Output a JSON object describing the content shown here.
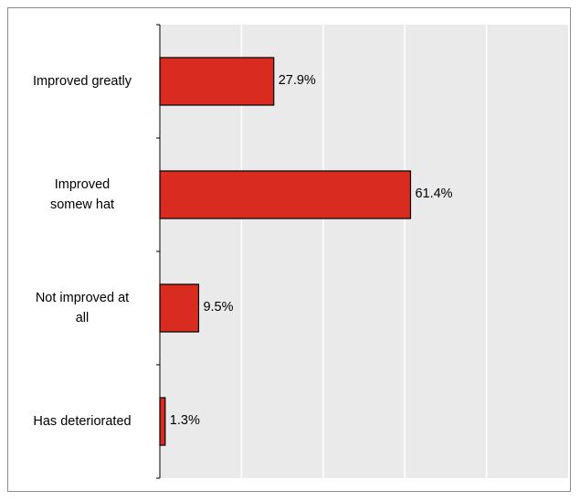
{
  "chart_data": {
    "type": "bar",
    "orientation": "horizontal",
    "title": "",
    "xlabel": "",
    "ylabel": "",
    "categories": [
      "Improved greatly",
      "Improved\nsomew hat",
      "Not improved at\nall",
      "Has deteriorated"
    ],
    "values": [
      27.9,
      61.4,
      9.5,
      1.3
    ],
    "value_labels": [
      "27.9%",
      "61.4%",
      "9.5%",
      "1.3%"
    ],
    "xlim": [
      0,
      100
    ],
    "grid": true,
    "legend": "none",
    "colors": {
      "bar_fill": "#d92b20",
      "bar_stroke": "#000000",
      "plot_background": "#eaeaea",
      "gridline": "#ffffff",
      "axis": "#000000"
    }
  }
}
